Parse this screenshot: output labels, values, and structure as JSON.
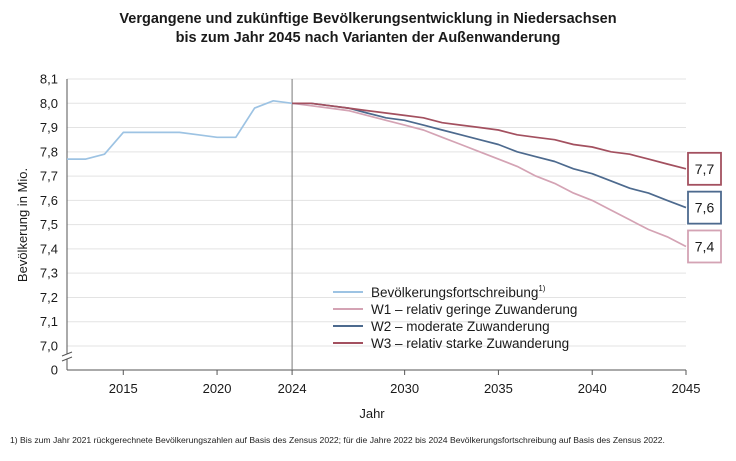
{
  "title_line1": "Vergangene und zukünftige Bevölkerungsentwicklung in Niedersachsen",
  "title_line2": "bis zum Jahr 2045 nach Varianten der Außenwanderung",
  "footnote": "1) Bis zum Jahr 2021 rückgerechnete Bevölkerungszahlen auf Basis des Zensus 2022; für die Jahre 2022 bis 2024 Bevölkerungsfortschreibung auf Basis des Zensus 2022.",
  "chart_data": {
    "type": "line",
    "xlabel": "Jahr",
    "ylabel": "Bevölkerung in Mio.",
    "xlim": [
      2012,
      2045
    ],
    "ylim": [
      7.0,
      8.1
    ],
    "y_axis_break": true,
    "y_break_bottom_label": "0",
    "x_ticks": [
      "2015",
      "2020",
      "2024",
      "2030",
      "2035",
      "2040",
      "2045"
    ],
    "y_ticks": [
      "7,0",
      "7,1",
      "7,2",
      "7,3",
      "7,4",
      "7,5",
      "7,6",
      "7,7",
      "7,8",
      "7,9",
      "8,0",
      "8,1"
    ],
    "grid": true,
    "vertical_marker_x": 2024,
    "legend_position": "bottom-center",
    "series": [
      {
        "name": "Bevölkerungsfortschreibung",
        "footnote_mark": "1)",
        "color": "#9dc3e3",
        "x": [
          2012,
          2013,
          2014,
          2015,
          2016,
          2017,
          2018,
          2019,
          2020,
          2021,
          2022,
          2023,
          2024
        ],
        "y": [
          7.77,
          7.77,
          7.79,
          7.88,
          7.88,
          7.88,
          7.88,
          7.87,
          7.86,
          7.86,
          7.98,
          8.01,
          8.0
        ]
      },
      {
        "name": "W1 – relativ geringe Zuwanderung",
        "color": "#d4a3b4",
        "x": [
          2024,
          2025,
          2026,
          2027,
          2028,
          2029,
          2030,
          2031,
          2032,
          2033,
          2034,
          2035,
          2036,
          2037,
          2038,
          2039,
          2040,
          2041,
          2042,
          2043,
          2044,
          2045
        ],
        "y": [
          8.0,
          7.99,
          7.98,
          7.97,
          7.95,
          7.93,
          7.91,
          7.89,
          7.86,
          7.83,
          7.8,
          7.77,
          7.74,
          7.7,
          7.67,
          7.63,
          7.6,
          7.56,
          7.52,
          7.48,
          7.45,
          7.41
        ],
        "end_label": "7,4"
      },
      {
        "name": "W2 – moderate Zuwanderung",
        "color": "#4d6a8e",
        "x": [
          2024,
          2025,
          2026,
          2027,
          2028,
          2029,
          2030,
          2031,
          2032,
          2033,
          2034,
          2035,
          2036,
          2037,
          2038,
          2039,
          2040,
          2041,
          2042,
          2043,
          2044,
          2045
        ],
        "y": [
          8.0,
          8.0,
          7.99,
          7.98,
          7.96,
          7.94,
          7.93,
          7.91,
          7.89,
          7.87,
          7.85,
          7.83,
          7.8,
          7.78,
          7.76,
          7.73,
          7.71,
          7.68,
          7.65,
          7.63,
          7.6,
          7.57
        ],
        "end_label": "7,6"
      },
      {
        "name": "W3 – relativ starke Zuwanderung",
        "color": "#a3505f",
        "x": [
          2024,
          2025,
          2026,
          2027,
          2028,
          2029,
          2030,
          2031,
          2032,
          2033,
          2034,
          2035,
          2036,
          2037,
          2038,
          2039,
          2040,
          2041,
          2042,
          2043,
          2044,
          2045
        ],
        "y": [
          8.0,
          8.0,
          7.99,
          7.98,
          7.97,
          7.96,
          7.95,
          7.94,
          7.92,
          7.91,
          7.9,
          7.89,
          7.87,
          7.86,
          7.85,
          7.83,
          7.82,
          7.8,
          7.79,
          7.77,
          7.75,
          7.73
        ],
        "end_label": "7,7"
      }
    ]
  }
}
